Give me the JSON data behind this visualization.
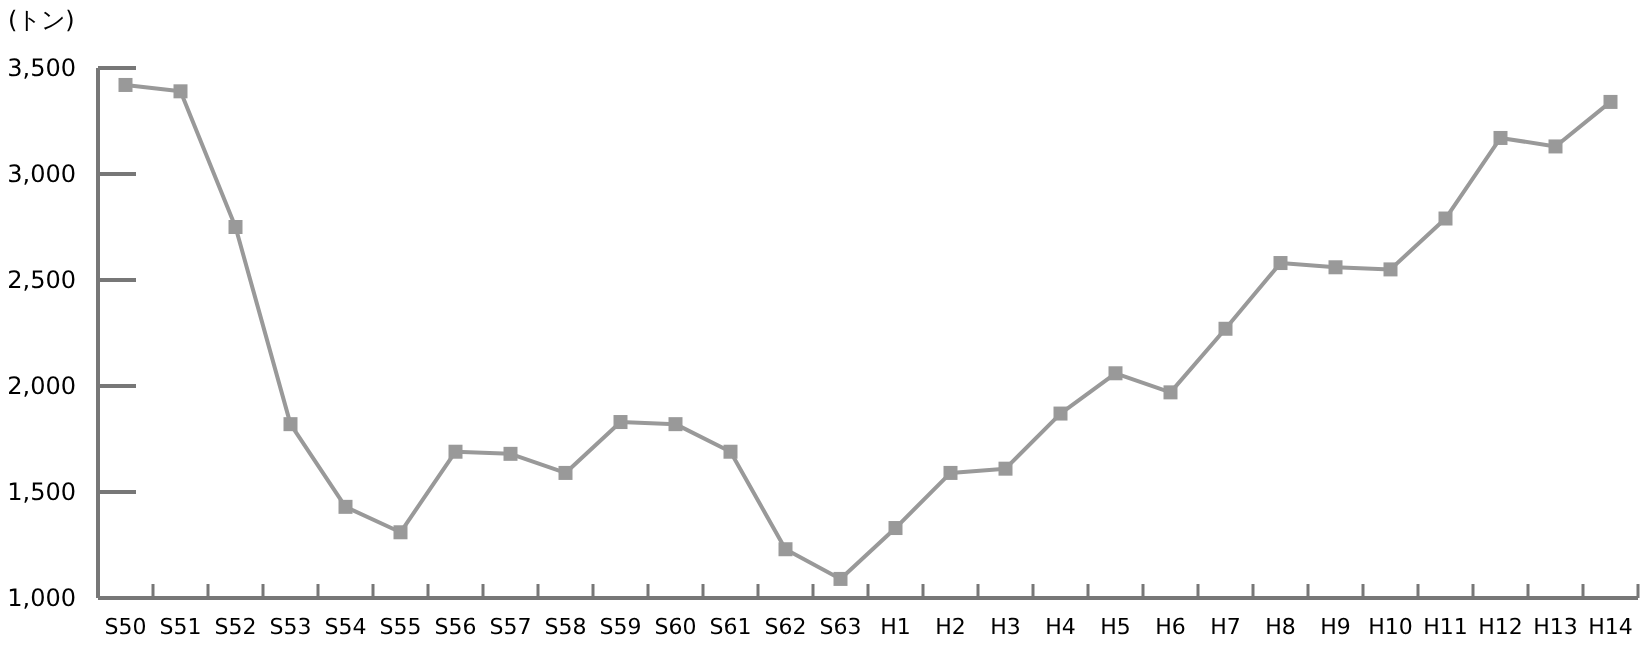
{
  "chart_data": {
    "type": "line",
    "ylabel": "(トン)",
    "categories": [
      "S50",
      "S51",
      "S52",
      "S53",
      "S54",
      "S55",
      "S56",
      "S57",
      "S58",
      "S59",
      "S60",
      "S61",
      "S62",
      "S63",
      "H1",
      "H2",
      "H3",
      "H4",
      "H5",
      "H6",
      "H7",
      "H8",
      "H9",
      "H10",
      "H11",
      "H12",
      "H13",
      "H14"
    ],
    "series": [
      {
        "color": "#999999",
        "values": [
          3420,
          3390,
          2750,
          1820,
          1430,
          1310,
          1690,
          1680,
          1590,
          1830,
          1820,
          1690,
          1230,
          1090,
          1330,
          1590,
          1610,
          1870,
          2060,
          1970,
          2270,
          2580,
          2560,
          2550,
          2790,
          3170,
          3130,
          3340
        ]
      }
    ],
    "ylim": [
      1000,
      3500
    ],
    "yticks": [
      {
        "value": 1000,
        "label": "1,000"
      },
      {
        "value": 1500,
        "label": "1,500"
      },
      {
        "value": 2000,
        "label": "2,000"
      },
      {
        "value": 2500,
        "label": "2,500"
      },
      {
        "value": 3000,
        "label": "3,000"
      },
      {
        "value": 3500,
        "label": "3,500"
      }
    ],
    "grid": false,
    "marker": "square",
    "line_style": "solid"
  }
}
